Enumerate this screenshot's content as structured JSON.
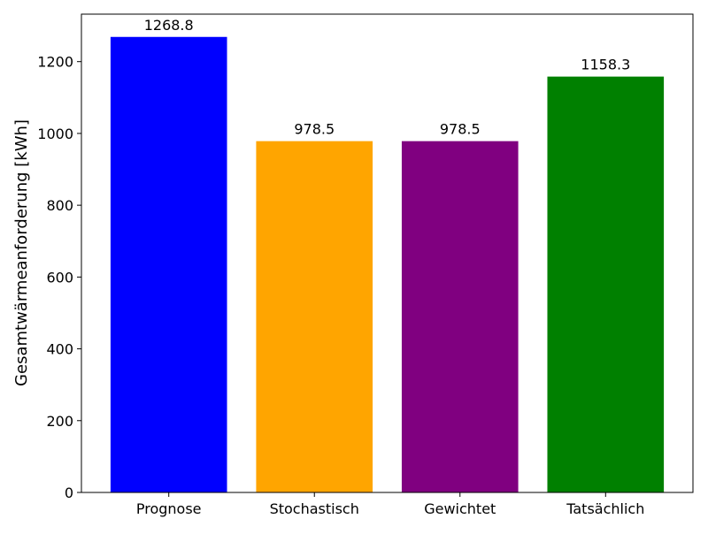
{
  "chart_data": {
    "type": "bar",
    "title": "",
    "xlabel": "",
    "ylabel": "Gesamtwärmeanforderung [kWh]",
    "categories": [
      "Prognose",
      "Stochastisch",
      "Gewichtet",
      "Tatsächlich"
    ],
    "values": [
      1268.8,
      978.5,
      978.5,
      1158.3
    ],
    "data_labels": [
      "1268.8",
      "978.5",
      "978.5",
      "1158.3"
    ],
    "colors": [
      "#0000ff",
      "#ffa500",
      "#800080",
      "#008000"
    ],
    "ylim": [
      0,
      1332.24
    ],
    "yticks": [
      0,
      200,
      400,
      600,
      800,
      1000,
      1200
    ],
    "grid": false,
    "legend": "none"
  }
}
